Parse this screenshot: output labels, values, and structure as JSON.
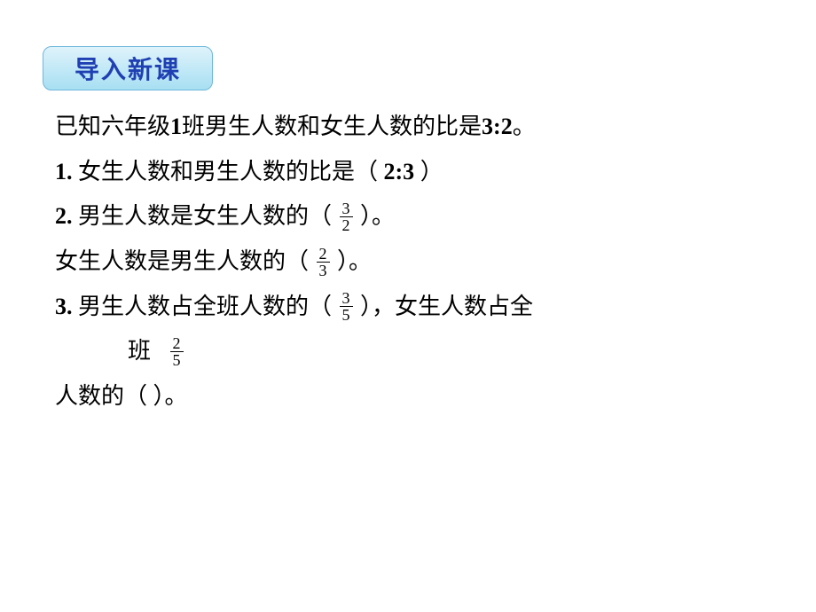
{
  "header": {
    "label": "导入新课",
    "text_color": "#1f3fb3",
    "bg_gradient_top": "#dff3fb",
    "bg_gradient_bottom": "#a7dff2",
    "border_color": "#6db7db",
    "fontsize": 28
  },
  "body": {
    "fontsize": 26,
    "frac_fontsize": 18,
    "text_color": "#000000"
  },
  "intro": {
    "pre": "已知六年级",
    "class_num": "1",
    "mid": "班男生人数和女生人数的比是",
    "ratio": "3:2",
    "post": "。"
  },
  "q1": {
    "num": "1.",
    "text_pre": " 女生人数和男生人数的比是（ ",
    "answer": "2:3",
    "text_post": " ）"
  },
  "q2": {
    "num": "2.",
    "text_pre": " 男生人数是女生人数的（ ",
    "frac_num": "3",
    "frac_den": "2",
    "text_post": " ）。"
  },
  "q2b": {
    "text_pre": "女生人数是男生人数的（ ",
    "frac_num": "2",
    "frac_den": "3",
    "text_post": "  ）。"
  },
  "q3": {
    "num": "3.",
    "text_pre": " 男生人数占全班人数的（ ",
    "frac_num": "3",
    "frac_den": "5",
    "text_mid": " ），女生人数占全",
    "line2_pre": "班",
    "frac2_num": "2",
    "frac2_den": "5",
    "line3": "人数的（    ）。"
  }
}
